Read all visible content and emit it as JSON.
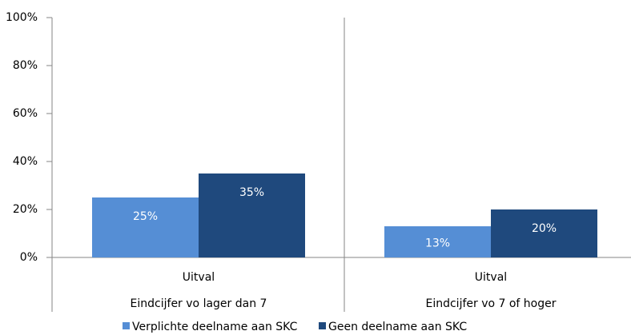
{
  "chart_data": {
    "type": "bar",
    "categories": [
      "Uitval",
      "Uitval"
    ],
    "groups": [
      "Eindcijfer vo lager dan 7",
      "Eindcijfer vo 7 of hoger"
    ],
    "series": [
      {
        "name": "Verplichte deelname aan SKC",
        "color": "#558ed5",
        "values": [
          25,
          13
        ],
        "value_labels": [
          "25%",
          "13%"
        ]
      },
      {
        "name": "Geen deelname aan SKC",
        "color": "#1f497d",
        "values": [
          35,
          20
        ],
        "value_labels": [
          "35%",
          "20%"
        ]
      }
    ],
    "ylim": [
      0,
      100
    ],
    "yticks": [
      {
        "value": 0,
        "label": "0%"
      },
      {
        "value": 20,
        "label": "20%"
      },
      {
        "value": 40,
        "label": "40%"
      },
      {
        "value": 60,
        "label": "60%"
      },
      {
        "value": 80,
        "label": "80%"
      },
      {
        "value": 100,
        "label": "100%"
      }
    ],
    "legend": "bottom"
  }
}
